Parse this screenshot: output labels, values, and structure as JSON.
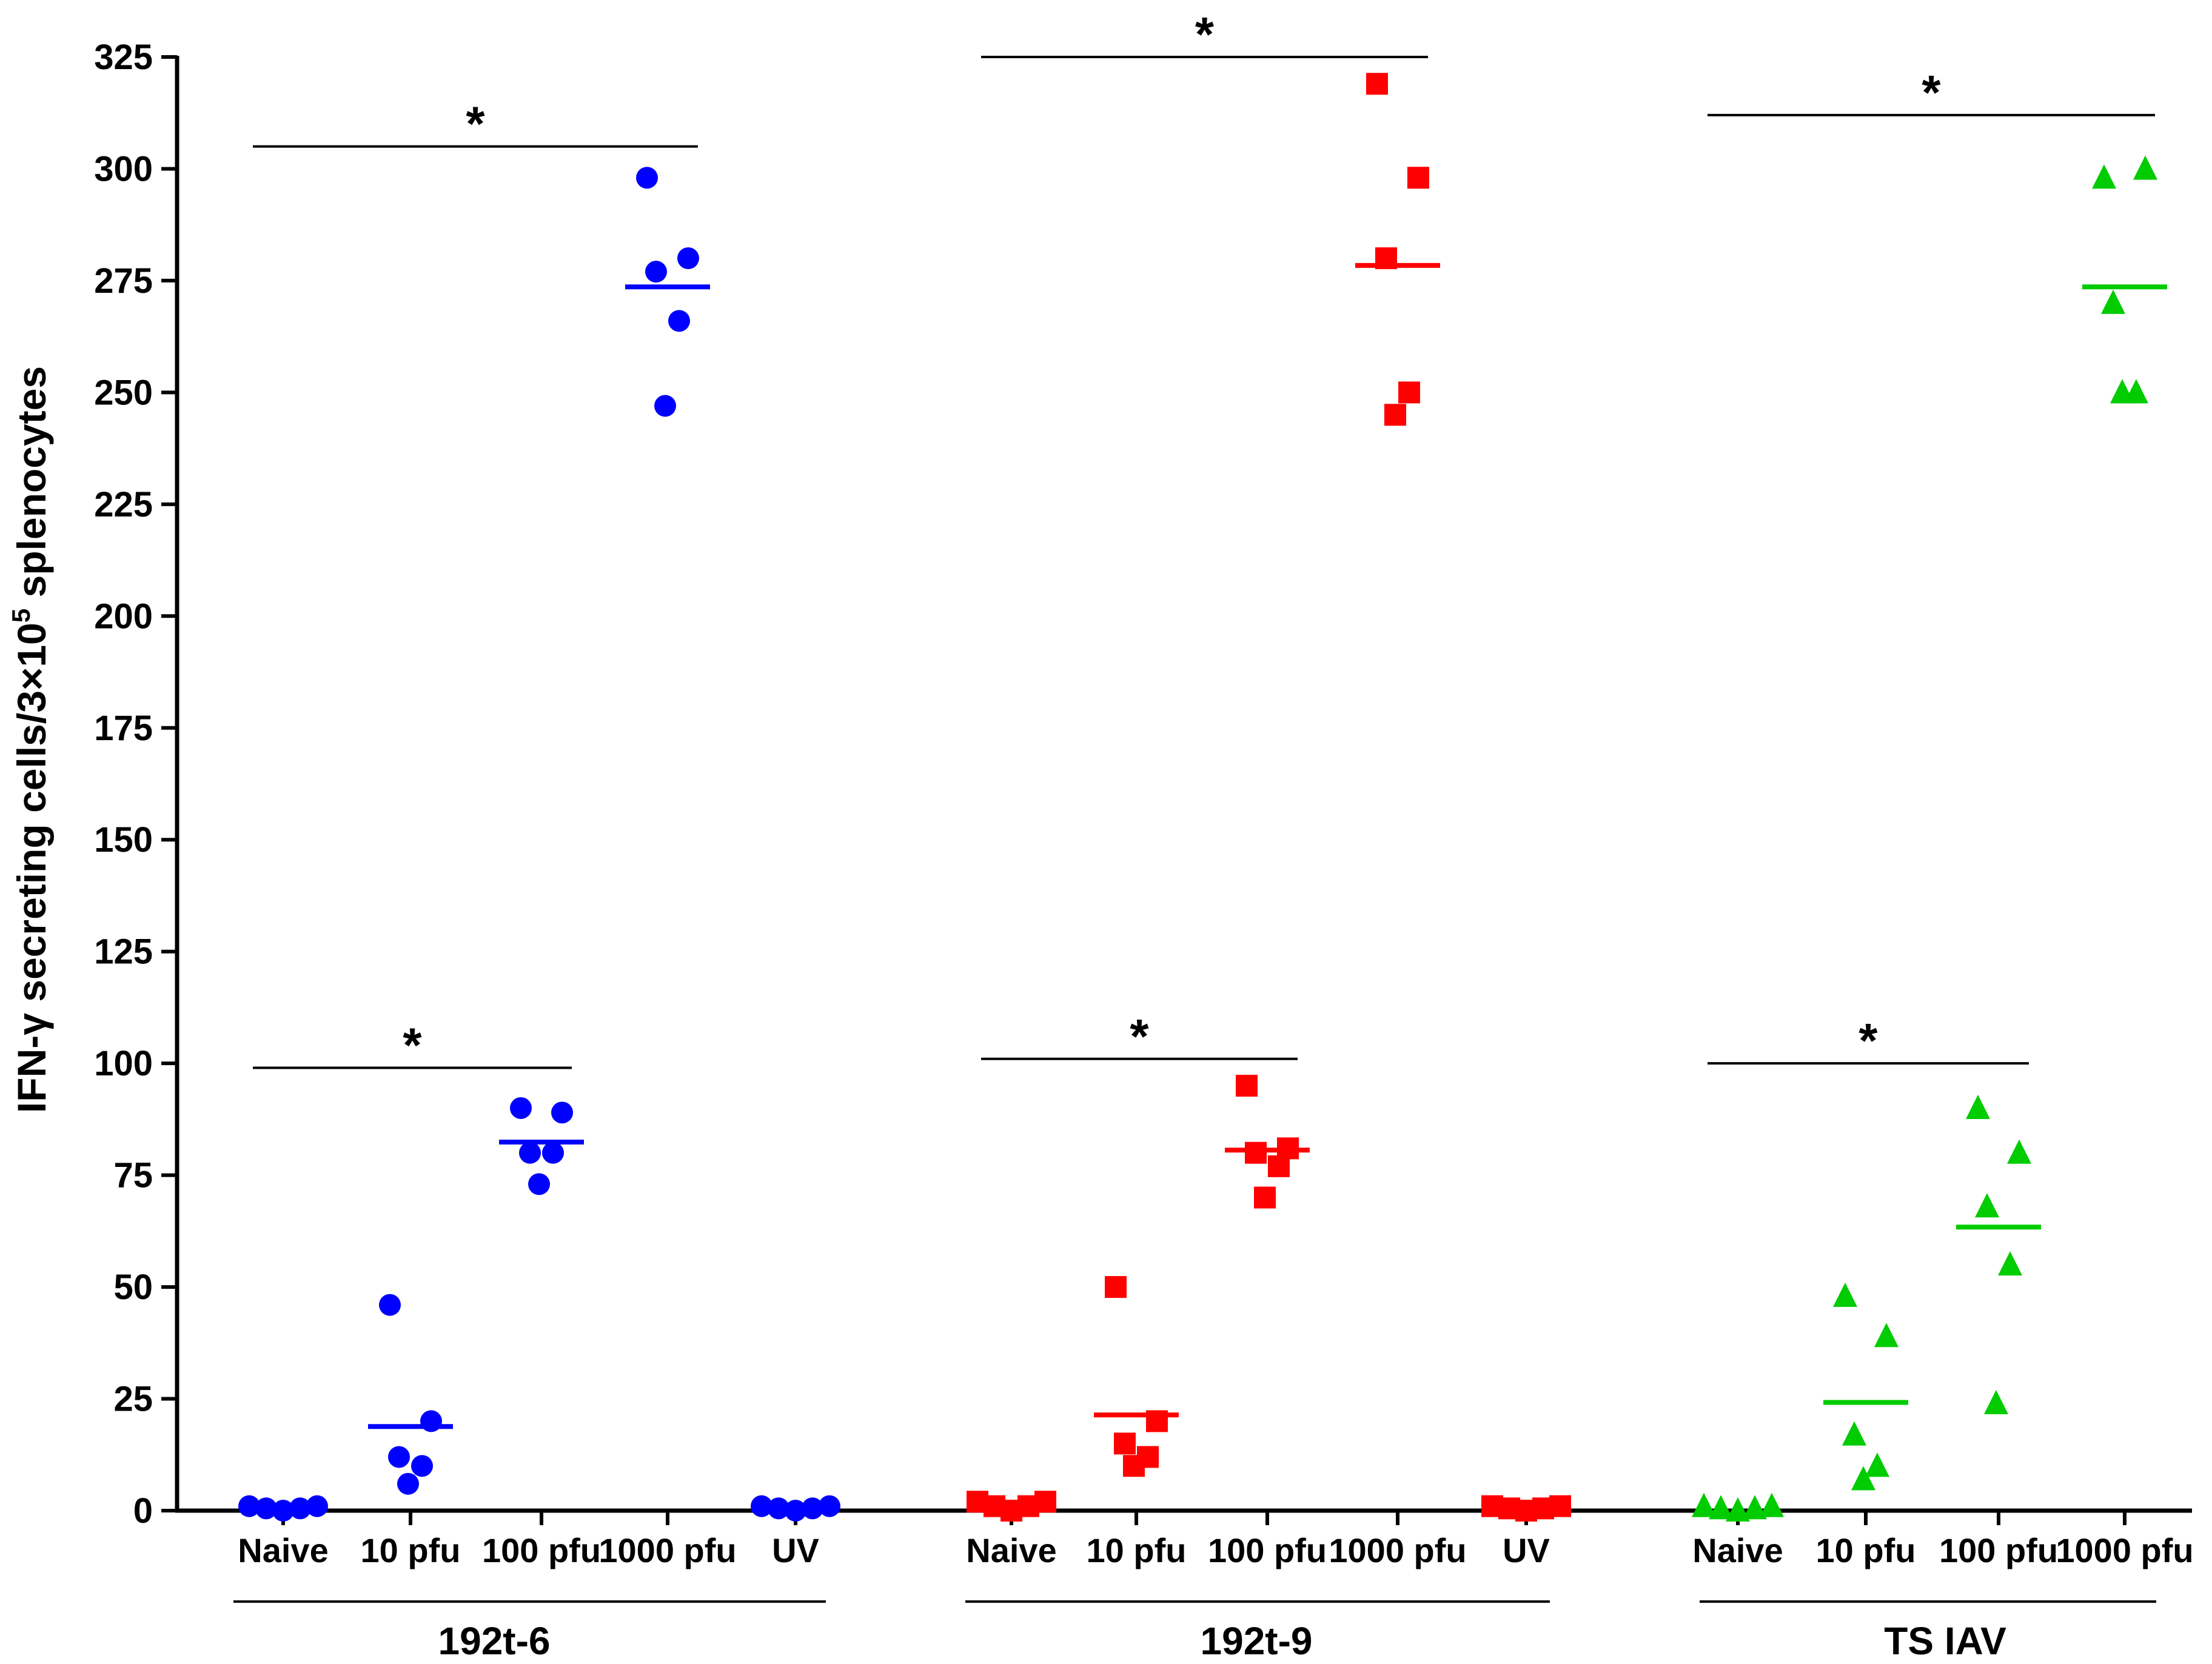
{
  "chart_data": {
    "type": "scatter",
    "ylabel": "IFN-γ secreting cells/3×10⁵ splenocytes",
    "ylabel_parts": {
      "main": "IFN-γ secreting cells/3×10",
      "sup": "5",
      "tail": " splenocytes"
    },
    "ylim": [
      0,
      325
    ],
    "yticks": [
      "0",
      "25",
      "50",
      "75",
      "100",
      "125",
      "150",
      "175",
      "200",
      "225",
      "250",
      "275",
      "300",
      "325"
    ],
    "significance_marker": "*",
    "groups": [
      {
        "name": "192t-6",
        "color": "#0000ff",
        "marker": "circle",
        "categories": [
          {
            "label": "Naive",
            "values": [
              1,
              0.5,
              0,
              0.5,
              1
            ],
            "mean": null
          },
          {
            "label": "10 pfu",
            "values": [
              46,
              20,
              12,
              10,
              6
            ],
            "mean": 18.8
          },
          {
            "label": "100 pfu",
            "values": [
              90,
              89,
              80,
              80,
              73
            ],
            "mean": 82.4
          },
          {
            "label": "1000 pfu",
            "values": [
              298,
              280,
              277,
              266,
              247
            ],
            "mean": 273.6
          },
          {
            "label": "UV",
            "values": [
              1,
              0.5,
              0,
              0.5,
              1
            ],
            "mean": null
          }
        ],
        "comparisons": [
          {
            "from": 0,
            "to": 2,
            "y": 99,
            "label": "*"
          },
          {
            "from": 0,
            "to": 3,
            "y": 305,
            "label": "*"
          }
        ]
      },
      {
        "name": "192t-9",
        "color": "#ff0000",
        "marker": "square",
        "categories": [
          {
            "label": "Naive",
            "values": [
              2,
              1,
              0,
              1,
              2
            ],
            "mean": null
          },
          {
            "label": "10 pfu",
            "values": [
              50,
              20,
              15,
              12,
              10
            ],
            "mean": 21.4
          },
          {
            "label": "100 pfu",
            "values": [
              95,
              81,
              80,
              77,
              70
            ],
            "mean": 80.6
          },
          {
            "label": "1000 pfu",
            "values": [
              319,
              298,
              280,
              250,
              245
            ],
            "mean": 278.4
          },
          {
            "label": "UV",
            "values": [
              1,
              0.5,
              0,
              0.5,
              1
            ],
            "mean": null
          }
        ],
        "comparisons": [
          {
            "from": 0,
            "to": 2,
            "y": 101,
            "label": "*"
          },
          {
            "from": 0,
            "to": 3,
            "y": 325,
            "label": "*"
          }
        ]
      },
      {
        "name": "TS IAV",
        "color": "#00cc00",
        "marker": "triangle",
        "categories": [
          {
            "label": "Naive",
            "values": [
              1,
              0.5,
              0,
              0.5,
              1
            ],
            "mean": null
          },
          {
            "label": "10 pfu",
            "values": [
              48,
              39,
              17,
              10,
              7
            ],
            "mean": 24.2
          },
          {
            "label": "100 pfu",
            "values": [
              90,
              80,
              68,
              55,
              24
            ],
            "mean": 63.4
          },
          {
            "label": "1000 pfu",
            "values": [
              298,
              300,
              270,
              250,
              250
            ],
            "mean": 273.6
          }
        ],
        "comparisons": [
          {
            "from": 0,
            "to": 2,
            "y": 100,
            "label": "*"
          },
          {
            "from": 0,
            "to": 3,
            "y": 312,
            "label": "*"
          }
        ]
      }
    ]
  }
}
